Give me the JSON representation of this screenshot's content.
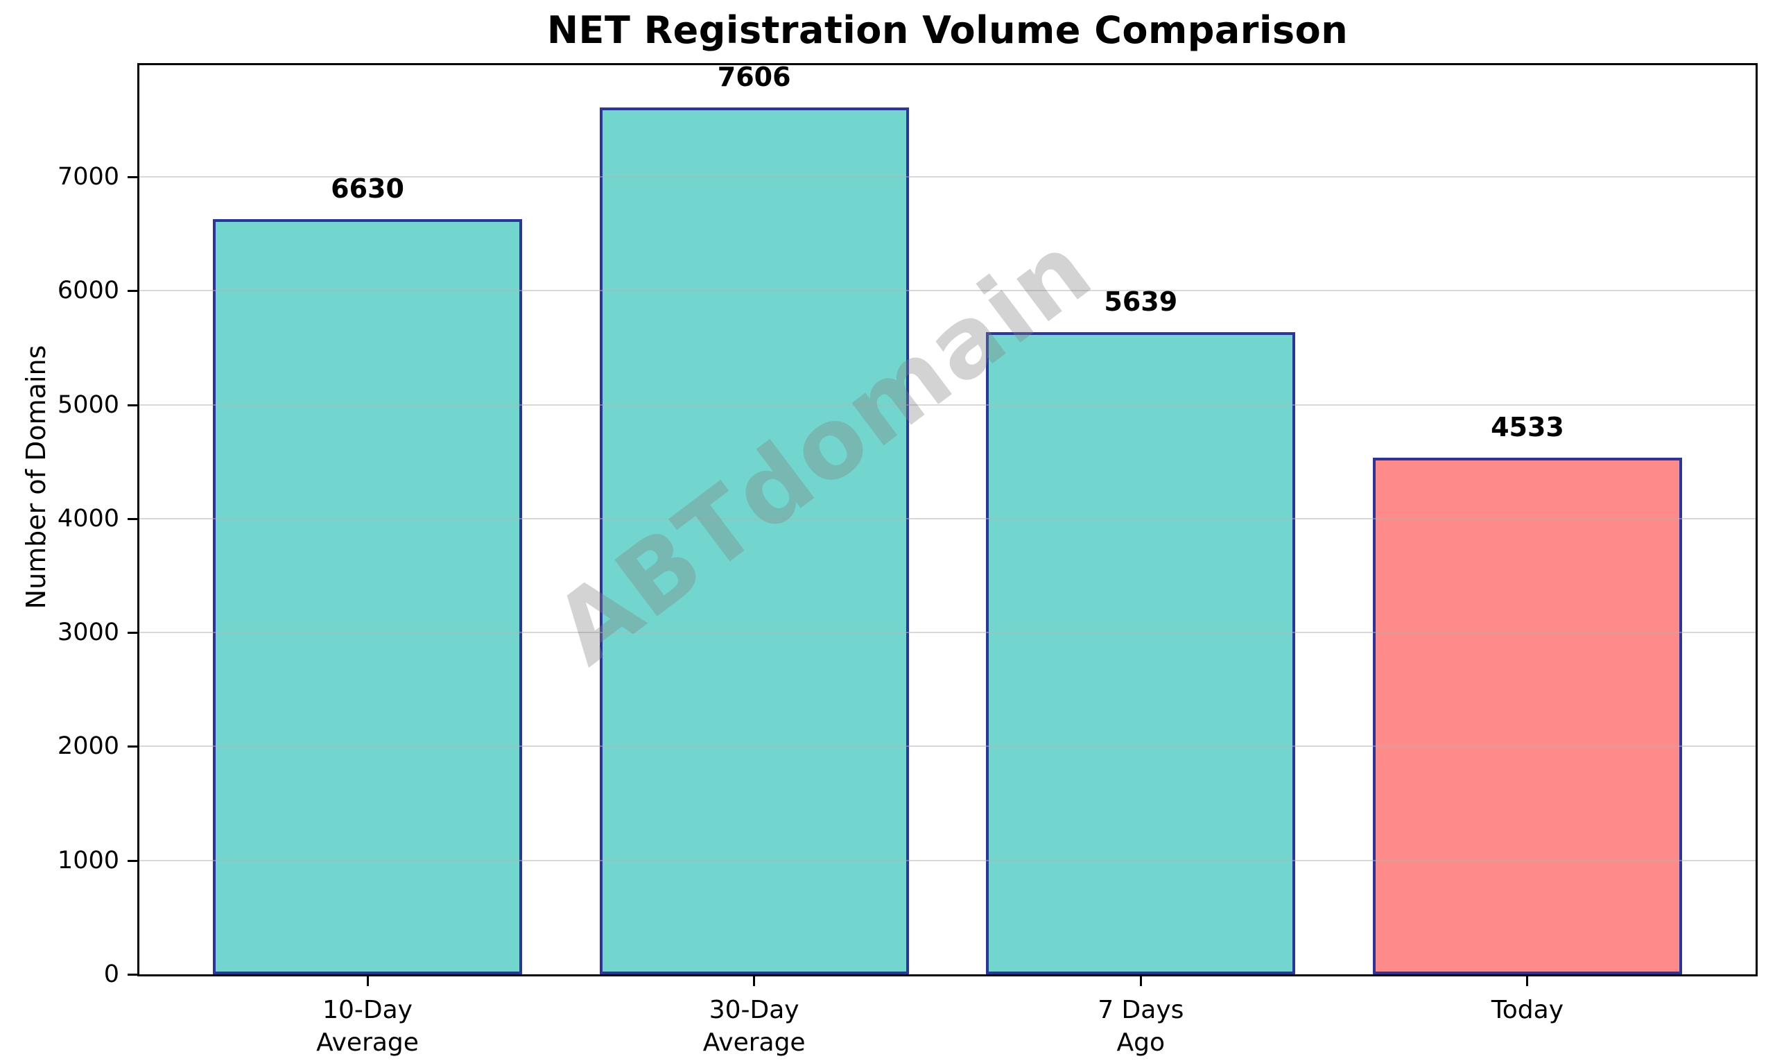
{
  "chart_data": {
    "type": "bar",
    "title": "NET Registration Volume Comparison",
    "ylabel": "Number of Domains",
    "xlabel": "",
    "categories": [
      "10-Day\nAverage",
      "30-Day\nAverage",
      "7 Days\nAgo",
      "Today"
    ],
    "values": [
      6630,
      7606,
      5639,
      4533
    ],
    "value_labels": [
      "6630",
      "7606",
      "5639",
      "4533"
    ],
    "bar_colors": [
      "#72D6CE",
      "#72D6CE",
      "#72D6CE",
      "#FF8A8A"
    ],
    "bar_edge_color": "#2A359E",
    "yticks": [
      0,
      1000,
      2000,
      3000,
      4000,
      5000,
      6000,
      7000
    ],
    "ylim": [
      0,
      7980
    ],
    "grid": "horizontal-gridlines-over-bars",
    "legend_position": "none",
    "watermark": "ABTdomain",
    "colors": {
      "teal_bar": "#72D6CE",
      "red_bar": "#FF8A8A",
      "bar_edge": "#2A359E",
      "gridline": "#B2B2B2",
      "spine": "#000000",
      "text": "#000000",
      "watermark_gray": "#808080"
    }
  }
}
